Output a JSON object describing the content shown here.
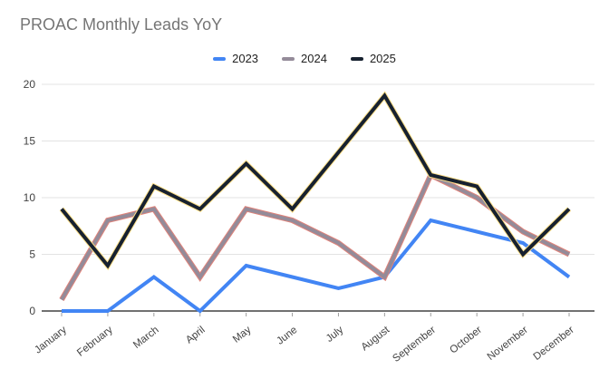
{
  "chart_data": {
    "type": "line",
    "title": "PROAC Monthly Leads YoY",
    "title_color": "#757575",
    "categories": [
      "January",
      "February",
      "March",
      "April",
      "May",
      "June",
      "July",
      "August",
      "September",
      "October",
      "November",
      "December"
    ],
    "series": [
      {
        "name": "2023",
        "color": "#4285f4",
        "values": [
          0,
          0,
          3,
          0,
          4,
          3,
          2,
          3,
          8,
          7,
          6,
          3
        ]
      },
      {
        "name": "2024",
        "color": "#948b99",
        "edge_color": "#e0837a",
        "values": [
          1,
          8,
          9,
          3,
          9,
          8,
          6,
          3,
          12,
          10,
          7,
          5
        ]
      },
      {
        "name": "2025",
        "color": "#17212f",
        "edge_color": "#ffe08a",
        "values": [
          9,
          4,
          11,
          9,
          13,
          9,
          14,
          19,
          12,
          11,
          5,
          9
        ]
      }
    ],
    "xlabel": "",
    "ylabel": "",
    "ylim": [
      0,
      20
    ],
    "yticks": [
      0,
      5,
      10,
      15,
      20
    ],
    "grid": true,
    "legend_position": "top",
    "axis_text_color": "#424242",
    "gridline_color": "#e3e3e3",
    "axis_line_color": "#424242",
    "tick_color": "#9e9e9e",
    "background": "#ffffff"
  }
}
